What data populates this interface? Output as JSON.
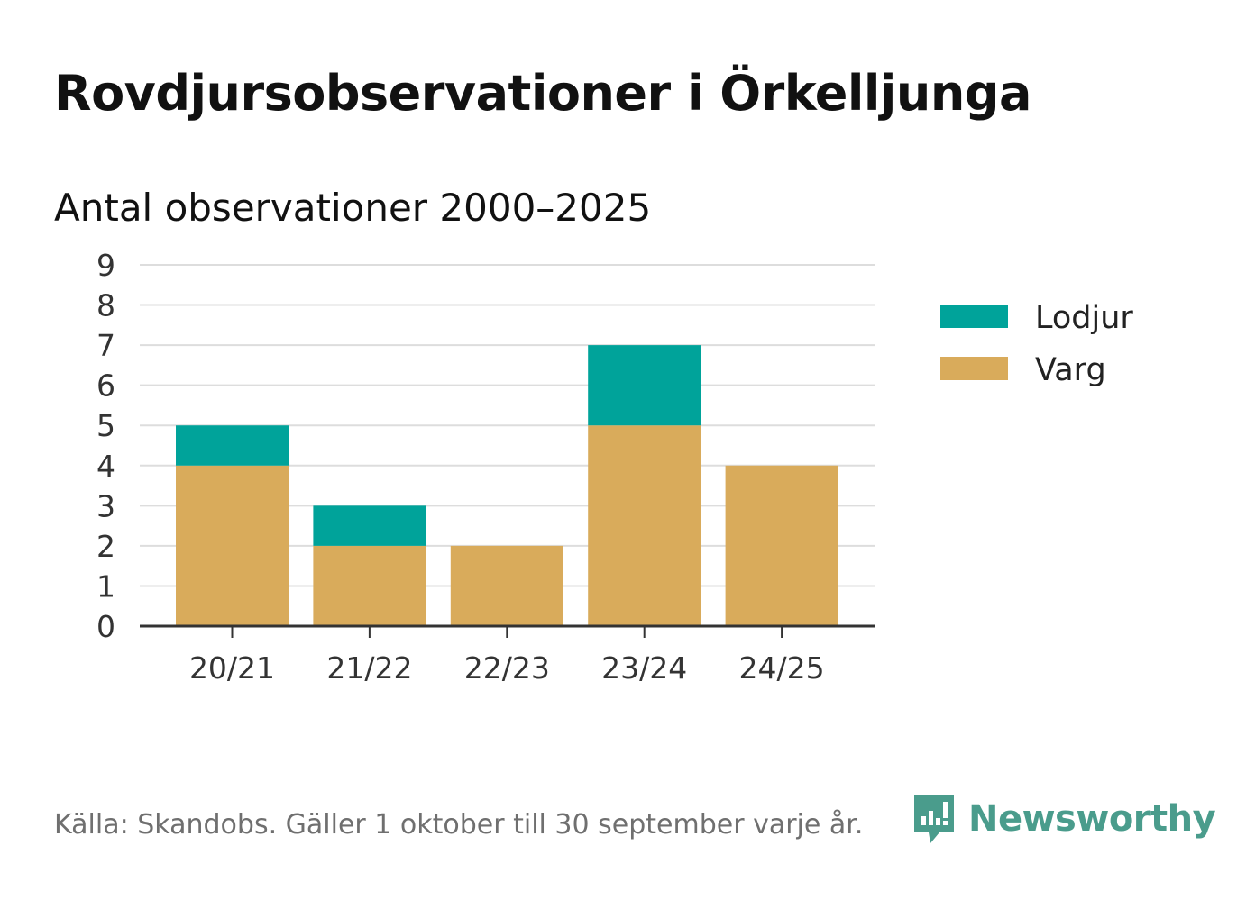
{
  "title": "Rovdjursobservationer i Örkelljunga",
  "source": "Källa: Skandobs. Gäller 1 oktober till 30 september varje år.",
  "brand": {
    "name": "Newsworthy",
    "color": "#4a9c8c",
    "icon": "newsworthy-logo-icon"
  },
  "chart_data": {
    "type": "bar",
    "stacked": true,
    "title": "Antal observationer 2000–2025",
    "xlabel": "",
    "ylabel": "",
    "categories": [
      "20/21",
      "21/22",
      "22/23",
      "23/24",
      "24/25"
    ],
    "series": [
      {
        "name": "Varg",
        "color": "#d9ab5b",
        "values": [
          4,
          2,
          2,
          5,
          4
        ]
      },
      {
        "name": "Lodjur",
        "color": "#00a39a",
        "values": [
          1,
          1,
          0,
          2,
          0
        ]
      }
    ],
    "ylim": [
      0,
      9
    ],
    "yticks": [
      "0",
      "1",
      "2",
      "3",
      "4",
      "5",
      "6",
      "7",
      "8",
      "9"
    ],
    "grid": true,
    "legend": {
      "position": "right",
      "order": [
        "Lodjur",
        "Varg"
      ]
    }
  }
}
